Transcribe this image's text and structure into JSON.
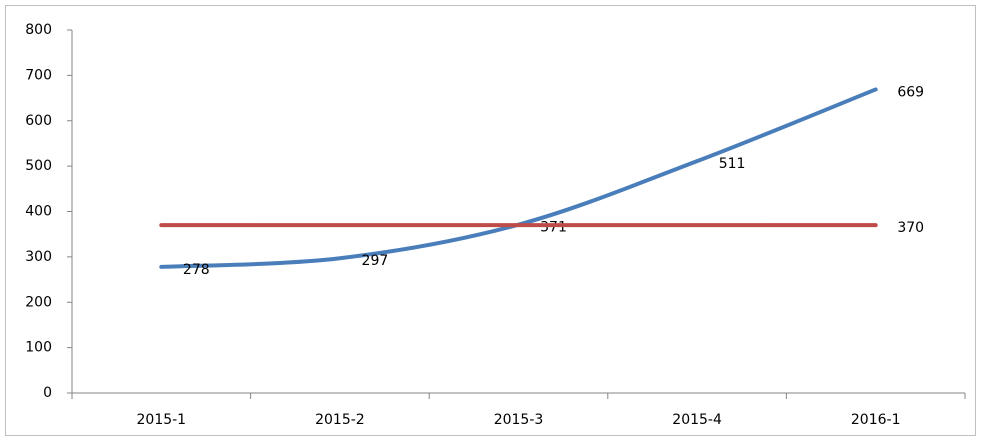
{
  "chart_data": {
    "type": "line",
    "categories": [
      "2015-1",
      "2015-2",
      "2015-3",
      "2015-4",
      "2016-1"
    ],
    "series": [
      {
        "color": "#4a7ebb",
        "values": [
          278,
          297,
          371,
          511,
          669
        ],
        "smooth": true,
        "data_labels": "all"
      },
      {
        "color": "#be4b48",
        "values": [
          370,
          370,
          370,
          370,
          370
        ],
        "smooth": false,
        "data_labels": "last"
      }
    ],
    "ylim": [
      0,
      800
    ],
    "yticks": [
      0,
      100,
      200,
      300,
      400,
      500,
      600,
      700,
      800
    ],
    "grid": false
  }
}
